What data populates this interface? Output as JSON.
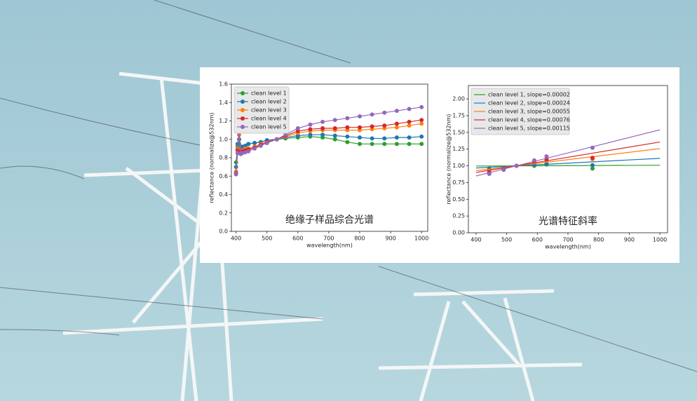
{
  "chart_data": [
    {
      "type": "line",
      "annotation": "绝缘子样品综合光谱",
      "xlabel": "wavelength(nm)",
      "ylabel": "reflectance (normalize@532nm)",
      "legend": "upper left",
      "grid": false,
      "xlim": [
        385,
        1020
      ],
      "xticks": [
        400,
        500,
        600,
        700,
        800,
        900,
        1000
      ],
      "ylim": [
        0,
        1.6
      ],
      "yticks": [
        {
          "value": 0,
          "label": "0.0"
        },
        {
          "value": 0.2,
          "label": "0.2"
        },
        {
          "value": 0.4,
          "label": "0.4"
        },
        {
          "value": 0.6,
          "label": "0.6"
        },
        {
          "value": 0.8,
          "label": "0.8"
        },
        {
          "value": 1,
          "label": "1.0"
        },
        {
          "value": 1.2,
          "label": "1.2"
        },
        {
          "value": 1.4,
          "label": "1.4"
        },
        {
          "value": 1.6,
          "label": "1.6"
        }
      ],
      "x": [
        400,
        405,
        410,
        415,
        420,
        430,
        440,
        460,
        480,
        500,
        532,
        560,
        600,
        640,
        680,
        720,
        760,
        800,
        840,
        880,
        920,
        960,
        1000
      ],
      "series": [
        {
          "name": "clean level 1",
          "color": "#2ca02c",
          "values": [
            0.75,
            0.92,
            0.95,
            0.9,
            0.91,
            0.93,
            0.95,
            0.96,
            0.97,
            0.99,
            1.0,
            1.01,
            1.02,
            1.03,
            1.02,
            1.0,
            0.97,
            0.95,
            0.95,
            0.95,
            0.95,
            0.95,
            0.95
          ]
        },
        {
          "name": "clean level 2",
          "color": "#1f77b4",
          "values": [
            0.7,
            0.95,
            1.0,
            0.9,
            0.92,
            0.93,
            0.95,
            0.96,
            0.97,
            0.99,
            1.0,
            1.02,
            1.04,
            1.05,
            1.05,
            1.04,
            1.03,
            1.02,
            1.01,
            1.01,
            1.02,
            1.02,
            1.03
          ]
        },
        {
          "name": "clean level 3",
          "color": "#ff7f0e",
          "values": [
            0.65,
            0.9,
            1.05,
            0.88,
            0.88,
            0.9,
            0.9,
            0.92,
            0.95,
            0.97,
            1.0,
            1.03,
            1.07,
            1.09,
            1.1,
            1.1,
            1.1,
            1.1,
            1.11,
            1.12,
            1.13,
            1.15,
            1.17
          ]
        },
        {
          "name": "clean level 4",
          "color": "#d62728",
          "values": [
            0.63,
            0.88,
            1.1,
            0.86,
            0.87,
            0.88,
            0.89,
            0.91,
            0.94,
            0.97,
            1.0,
            1.04,
            1.09,
            1.11,
            1.12,
            1.12,
            1.13,
            1.13,
            1.14,
            1.15,
            1.17,
            1.19,
            1.21
          ]
        },
        {
          "name": "clean level 5",
          "color": "#9467bd",
          "values": [
            0.62,
            0.85,
            1.12,
            0.84,
            0.85,
            0.86,
            0.87,
            0.9,
            0.93,
            0.96,
            1.0,
            1.05,
            1.12,
            1.16,
            1.19,
            1.21,
            1.23,
            1.25,
            1.27,
            1.29,
            1.31,
            1.33,
            1.35
          ]
        }
      ]
    },
    {
      "type": "scatter",
      "annotation": "光谱特征斜率",
      "xlabel": "wavelength(nm)",
      "ylabel": "reflectance (normalize@532nm)",
      "legend": "upper left",
      "grid": false,
      "xlim": [
        375,
        1025
      ],
      "xticks": [
        400,
        500,
        600,
        700,
        800,
        900,
        1000
      ],
      "ylim": [
        0,
        2.2
      ],
      "yticks": [
        {
          "value": 0,
          "label": "0.00"
        },
        {
          "value": 0.25,
          "label": "0.25"
        },
        {
          "value": 0.5,
          "label": "0.50"
        },
        {
          "value": 0.75,
          "label": "0.75"
        },
        {
          "value": 1,
          "label": "1.00"
        },
        {
          "value": 1.25,
          "label": "1.25"
        },
        {
          "value": 1.5,
          "label": "1.50"
        },
        {
          "value": 1.75,
          "label": "1.75"
        },
        {
          "value": 2,
          "label": "2.00"
        }
      ],
      "series": [
        {
          "name": "clean level 1, slope=0.00002",
          "color": "#2ca02c",
          "x": [
            400,
            1000
          ],
          "values": [
            0.997,
            1.009
          ],
          "points_x": [
            443,
            490,
            532,
            590,
            630,
            780
          ],
          "points": [
            0.96,
            0.97,
            1.0,
            1.0,
            1.02,
            0.96
          ]
        },
        {
          "name": "clean level 2, slope=0.00024",
          "color": "#1f77b4",
          "x": [
            400,
            1000
          ],
          "values": [
            0.968,
            1.112
          ],
          "points_x": [
            443,
            490,
            532,
            590,
            630,
            780
          ],
          "points": [
            0.95,
            0.96,
            1.0,
            1.02,
            1.03,
            1.01
          ]
        },
        {
          "name": "clean level 3, slope=0.00055",
          "color": "#ff7f0e",
          "x": [
            400,
            1000
          ],
          "values": [
            0.927,
            1.257
          ],
          "points_x": [
            443,
            490,
            532,
            590,
            630,
            780
          ],
          "points": [
            0.92,
            0.95,
            1.0,
            1.05,
            1.08,
            1.1
          ]
        },
        {
          "name": "clean level 4, slope=0.00076",
          "color": "#d62728",
          "x": [
            400,
            1000
          ],
          "values": [
            0.9,
            1.356
          ],
          "points_x": [
            443,
            490,
            532,
            590,
            630,
            780
          ],
          "points": [
            0.9,
            0.95,
            1.0,
            1.07,
            1.1,
            1.12
          ]
        },
        {
          "name": "clean level 5, slope=0.00115",
          "color": "#9467bd",
          "x": [
            400,
            1000
          ],
          "values": [
            0.848,
            1.538
          ],
          "points_x": [
            443,
            490,
            532,
            590,
            630,
            780
          ],
          "points": [
            0.88,
            0.94,
            1.0,
            1.08,
            1.14,
            1.27
          ]
        }
      ]
    }
  ]
}
